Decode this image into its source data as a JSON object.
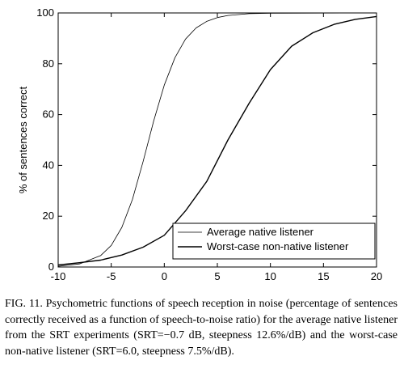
{
  "chart_data": {
    "type": "line",
    "title": "",
    "xlabel": "",
    "ylabel": "% of sentences correct",
    "xlim": [
      -10,
      20
    ],
    "ylim": [
      0,
      100
    ],
    "xticks": [
      -10,
      -5,
      0,
      5,
      10,
      15,
      20
    ],
    "yticks": [
      0,
      20,
      40,
      60,
      80,
      100
    ],
    "x_tick_labels": [
      "-10",
      "-5",
      "0",
      "5",
      "10",
      "15",
      "20"
    ],
    "y_tick_labels": [
      "0",
      "20",
      "40",
      "60",
      "80",
      "100"
    ],
    "grid": false,
    "legend_position": "bottom-right",
    "series": [
      {
        "name": "Average native listener",
        "srt": -0.7,
        "steepness": 12.6,
        "x": [
          -10,
          -8,
          -6,
          -5,
          -4,
          -3,
          -2,
          -1,
          0,
          1,
          2,
          3,
          4,
          5,
          6,
          8,
          10,
          20
        ],
        "values": [
          0.3,
          1.2,
          4.5,
          8.5,
          15.6,
          26.6,
          41.5,
          57.5,
          71.6,
          82.4,
          89.7,
          94.1,
          96.7,
          98.2,
          99,
          99.7,
          99.9,
          100
        ]
      },
      {
        "name": "Worst-case non-native listener",
        "srt": 6.0,
        "steepness": 7.5,
        "x": [
          -10,
          -8,
          -6,
          -4,
          -2,
          0,
          2,
          4,
          6,
          8,
          10,
          12,
          14,
          16,
          18,
          20
        ],
        "values": [
          0.8,
          1.7,
          2.7,
          4.7,
          7.8,
          12.5,
          22.1,
          33.7,
          50,
          64.5,
          77.7,
          86.9,
          92.2,
          95.5,
          97.5,
          98.6
        ]
      }
    ]
  },
  "caption": "FIG. 11. Psychometric functions of speech reception in noise (percentage of sentences correctly received as a function of speech-to-noise ratio) for the average native listener from the SRT experiments (SRT=−0.7 dB, steepness 12.6%/dB) and the worst-case non-native listener (SRT=6.0, steepness 7.5%/dB).",
  "colors": {
    "line": "#000000",
    "background": "#ffffff"
  }
}
